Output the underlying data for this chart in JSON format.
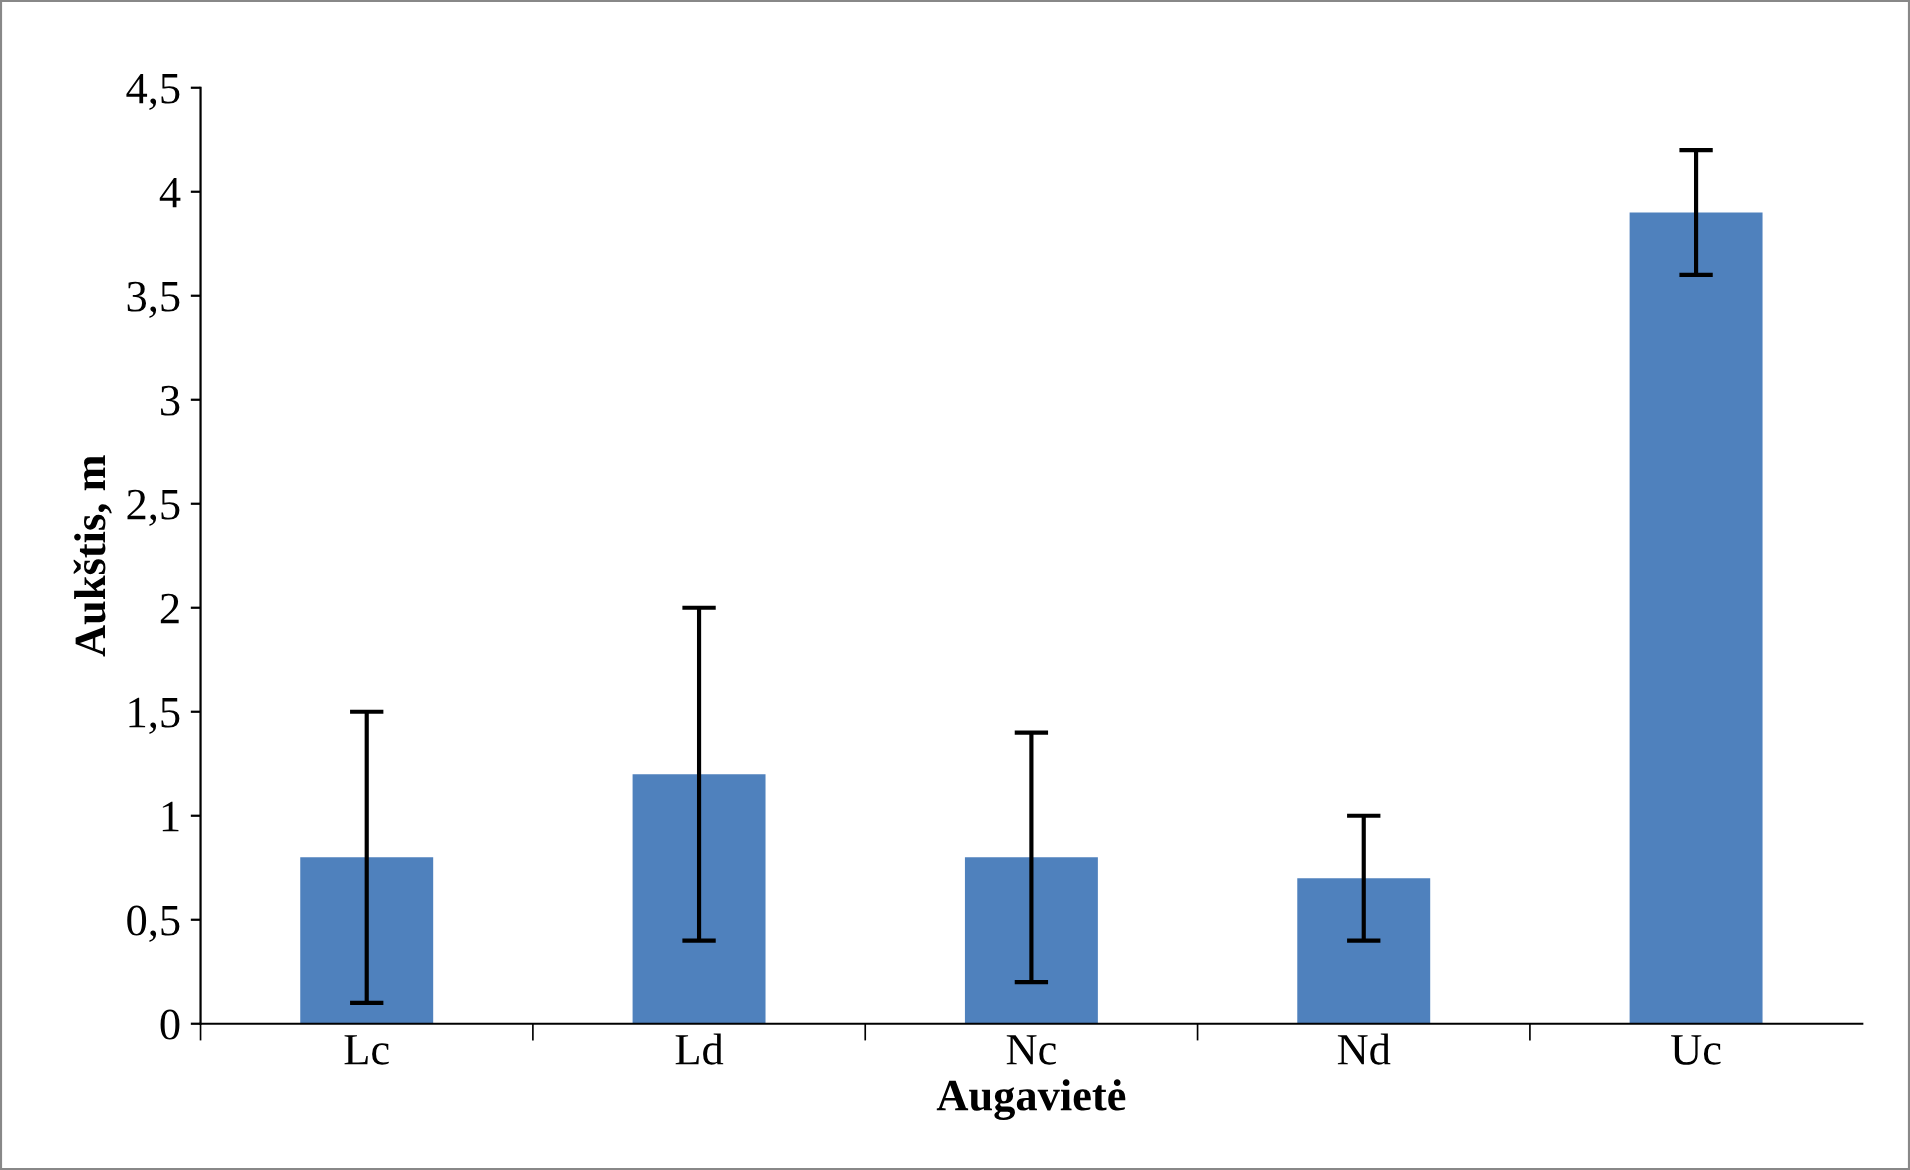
{
  "chart_data": {
    "type": "bar",
    "xlabel": "Augavietė",
    "ylabel": "Aukštis, m",
    "categories": [
      "Lc",
      "Ld",
      "Nc",
      "Nd",
      "Uc"
    ],
    "values": [
      0.8,
      1.2,
      0.8,
      0.7,
      3.9
    ],
    "errors": [
      0.7,
      0.8,
      0.6,
      0.3,
      0.3
    ],
    "color": "#4f81bd",
    "ylim": [
      0,
      4.5
    ],
    "yticks": [
      0,
      {
        "value": 0.5,
        "label": "0,5"
      },
      1,
      {
        "value": 1.5,
        "label": "1,5"
      },
      2,
      {
        "value": 2.5,
        "label": "2,5"
      },
      3,
      {
        "value": 3.5,
        "label": "3,5"
      },
      4,
      {
        "value": 4.5,
        "label": "4,5"
      }
    ],
    "grid": false,
    "legend": false
  }
}
